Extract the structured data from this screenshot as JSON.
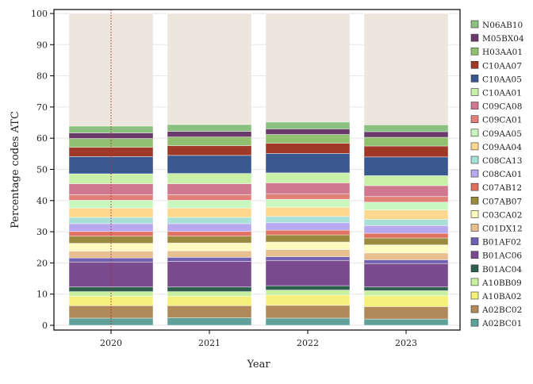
{
  "chart_data": {
    "type": "bar",
    "stacked": true,
    "xlabel": "Year",
    "ylabel": "Percentage codes ATC",
    "ylim": [
      0,
      100
    ],
    "yticks": [
      0,
      10,
      20,
      30,
      40,
      50,
      60,
      70,
      80,
      90,
      100
    ],
    "categories": [
      "2020",
      "2021",
      "2022",
      "2023"
    ],
    "grid": true,
    "legend_position": "right",
    "annotation": {
      "type": "vertical-dotted-line",
      "x": "2020",
      "color": "#b03030"
    },
    "series": [
      {
        "name": "A02BC01",
        "color": "#5fa19a",
        "values": [
          2.3,
          2.4,
          2.3,
          2.0
        ]
      },
      {
        "name": "A02BC02",
        "color": "#b08a5a",
        "values": [
          4.0,
          3.9,
          4.1,
          4.0
        ]
      },
      {
        "name": "A10BA02",
        "color": "#f5f07a",
        "values": [
          3.0,
          3.0,
          3.3,
          3.5
        ]
      },
      {
        "name": "A10BB09",
        "color": "#c8f0a0",
        "values": [
          1.5,
          1.5,
          1.6,
          1.6
        ]
      },
      {
        "name": "B01AC04",
        "color": "#2f5f4f",
        "values": [
          1.5,
          1.5,
          1.4,
          1.2
        ]
      },
      {
        "name": "B01AC06",
        "color": "#7a4a8e",
        "values": [
          8.0,
          8.2,
          8.1,
          7.5
        ]
      },
      {
        "name": "B01AF02",
        "color": "#7060b0",
        "values": [
          1.3,
          1.3,
          1.2,
          1.2
        ]
      },
      {
        "name": "C01DX12",
        "color": "#e8c090",
        "values": [
          2.2,
          2.1,
          2.3,
          2.2
        ]
      },
      {
        "name": "C03CA02",
        "color": "#fffac0",
        "values": [
          2.5,
          2.5,
          2.4,
          2.6
        ]
      },
      {
        "name": "C07AB07",
        "color": "#9a8a40",
        "values": [
          2.3,
          2.2,
          2.3,
          2.2
        ]
      },
      {
        "name": "C07AB12",
        "color": "#e07060",
        "values": [
          1.5,
          1.5,
          1.5,
          1.5
        ]
      },
      {
        "name": "C08CA01",
        "color": "#b8a8f0",
        "values": [
          2.5,
          2.5,
          2.4,
          2.5
        ]
      },
      {
        "name": "C08CA13",
        "color": "#a8e0d8",
        "values": [
          2.0,
          2.0,
          2.0,
          2.0
        ]
      },
      {
        "name": "C09AA04",
        "color": "#ffd890",
        "values": [
          3.0,
          3.0,
          3.0,
          3.0
        ]
      },
      {
        "name": "C09AA05",
        "color": "#c8f8c0",
        "values": [
          2.5,
          2.5,
          2.5,
          2.5
        ]
      },
      {
        "name": "C09CA01",
        "color": "#e08078",
        "values": [
          1.8,
          1.8,
          1.8,
          1.8
        ]
      },
      {
        "name": "C09CA08",
        "color": "#d07890",
        "values": [
          3.5,
          3.5,
          3.5,
          3.5
        ]
      },
      {
        "name": "C10AA01",
        "color": "#c8f0a8",
        "values": [
          3.2,
          3.3,
          3.2,
          3.2
        ]
      },
      {
        "name": "C10AA05",
        "color": "#3a5890",
        "values": [
          5.5,
          5.8,
          6.2,
          6.0
        ]
      },
      {
        "name": "C10AA07",
        "color": "#a03828",
        "values": [
          3.0,
          3.1,
          3.3,
          3.5
        ]
      },
      {
        "name": "H03AA01",
        "color": "#90c070",
        "values": [
          2.8,
          2.8,
          2.8,
          2.8
        ]
      },
      {
        "name": "M05BX04",
        "color": "#6a3a6a",
        "values": [
          1.8,
          1.8,
          1.8,
          1.8
        ]
      },
      {
        "name": "N06AB10",
        "color": "#8ac080",
        "values": [
          2.2,
          2.2,
          2.2,
          2.2
        ]
      }
    ]
  }
}
